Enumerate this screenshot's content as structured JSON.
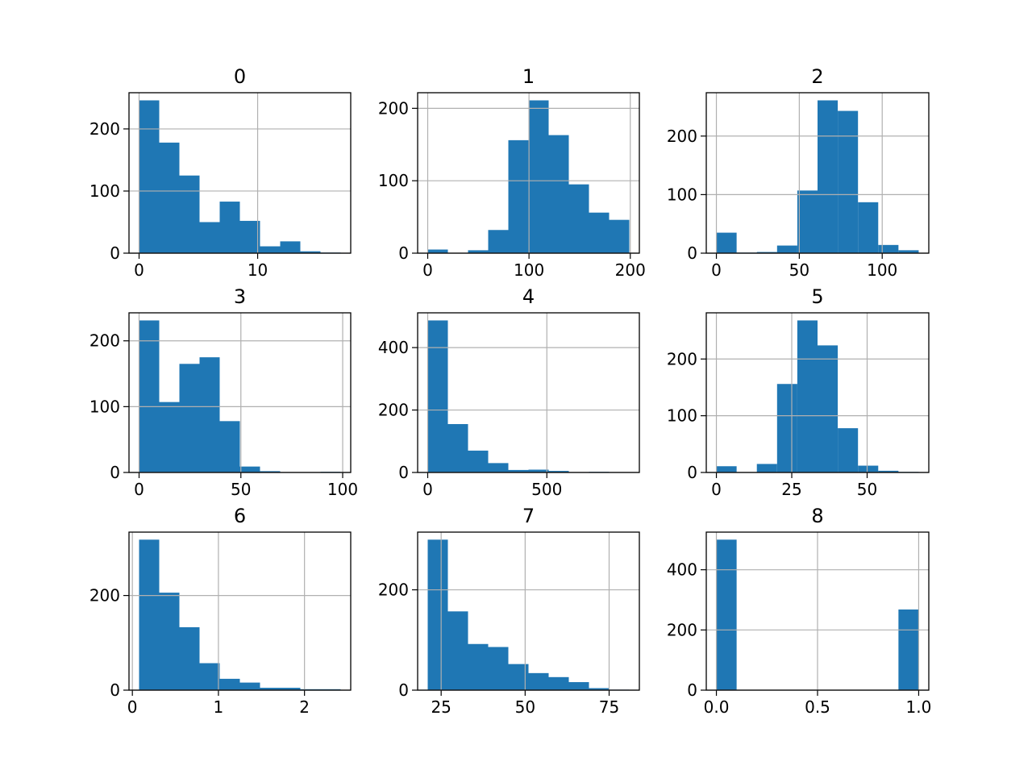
{
  "chart_data": {
    "type": "bar",
    "subtype": "histogram-grid",
    "grid": true,
    "bar_color": "#1f77b4",
    "grid_color": "#b0b0b0",
    "panels": [
      {
        "title": "0",
        "range": [
          0,
          17
        ],
        "counts": [
          246,
          178,
          125,
          50,
          83,
          52,
          11,
          19,
          3,
          1
        ],
        "xticks": [
          0,
          10
        ],
        "yticks": [
          0,
          100,
          200
        ]
      },
      {
        "title": "1",
        "range": [
          0,
          199
        ],
        "counts": [
          5,
          0,
          4,
          32,
          156,
          211,
          163,
          95,
          56,
          46
        ],
        "xticks": [
          0,
          100,
          200
        ],
        "yticks": [
          0,
          100,
          200
        ]
      },
      {
        "title": "2",
        "range": [
          0,
          122
        ],
        "counts": [
          35,
          1,
          2,
          13,
          107,
          261,
          243,
          87,
          14,
          5
        ],
        "xticks": [
          0,
          50,
          100
        ],
        "yticks": [
          0,
          100,
          200
        ]
      },
      {
        "title": "3",
        "range": [
          0,
          99
        ],
        "counts": [
          231,
          107,
          165,
          175,
          78,
          9,
          2,
          0,
          0,
          1
        ],
        "xticks": [
          0,
          50,
          100
        ],
        "yticks": [
          0,
          100,
          200
        ]
      },
      {
        "title": "4",
        "range": [
          0,
          846
        ],
        "counts": [
          487,
          155,
          70,
          30,
          8,
          9,
          5,
          1,
          2,
          1
        ],
        "xticks": [
          0,
          500
        ],
        "yticks": [
          0,
          200,
          400
        ]
      },
      {
        "title": "5",
        "range": [
          0,
          67.1
        ],
        "counts": [
          11,
          0,
          15,
          156,
          268,
          224,
          78,
          12,
          3,
          1
        ],
        "xticks": [
          0,
          25,
          50
        ],
        "yticks": [
          0,
          100,
          200
        ]
      },
      {
        "title": "6",
        "range": [
          0.078,
          2.42
        ],
        "counts": [
          318,
          206,
          133,
          57,
          24,
          16,
          5,
          5,
          2,
          2
        ],
        "xticks": [
          0,
          1,
          2
        ],
        "yticks": [
          0,
          200
        ]
      },
      {
        "title": "7",
        "range": [
          21,
          81
        ],
        "counts": [
          300,
          157,
          92,
          86,
          52,
          34,
          26,
          16,
          4,
          1
        ],
        "xticks": [
          25,
          50,
          75
        ],
        "yticks": [
          0,
          200
        ]
      },
      {
        "title": "8",
        "range": [
          0,
          1
        ],
        "counts": [
          500,
          0,
          0,
          0,
          0,
          0,
          0,
          0,
          0,
          268
        ],
        "xticks": [
          "0.0",
          "0.5",
          "1.0"
        ],
        "yticks": [
          0,
          200,
          400
        ]
      }
    ]
  }
}
